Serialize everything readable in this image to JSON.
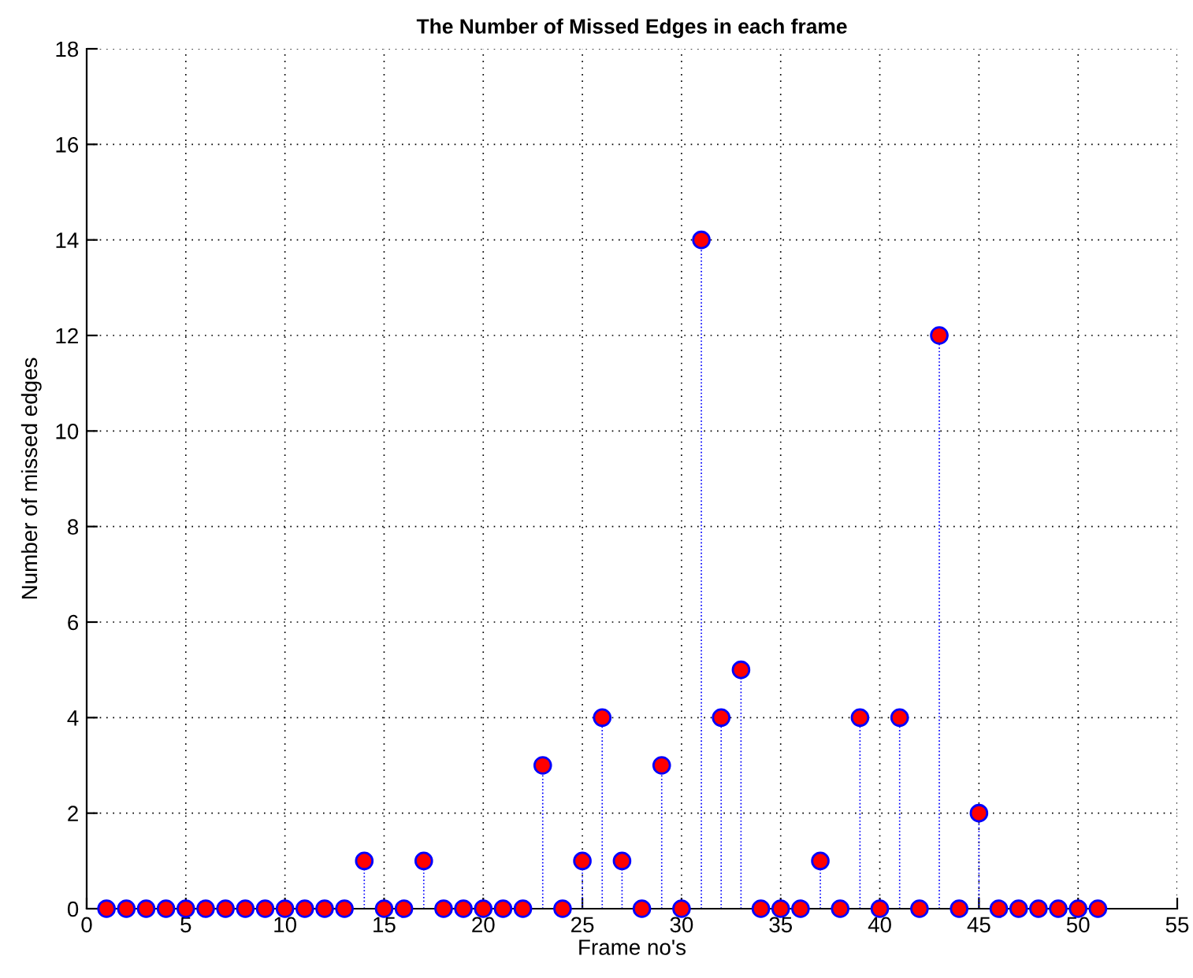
{
  "chart_data": {
    "type": "lollipop",
    "title": "The Number of Missed Edges in each frame",
    "xlabel": "Frame no's",
    "ylabel": "Number of missed edges",
    "x": [
      1,
      2,
      3,
      4,
      5,
      6,
      7,
      8,
      9,
      10,
      11,
      12,
      13,
      14,
      15,
      16,
      17,
      18,
      19,
      20,
      21,
      22,
      23,
      24,
      25,
      26,
      27,
      28,
      29,
      30,
      31,
      32,
      33,
      34,
      35,
      36,
      37,
      38,
      39,
      40,
      41,
      42,
      43,
      44,
      45,
      46,
      47,
      48,
      49,
      50,
      51
    ],
    "series": [
      {
        "color": "#ff0000",
        "values": [
          0,
          0,
          0,
          0,
          0,
          0,
          0,
          0,
          0,
          0,
          0,
          0,
          0,
          1,
          0,
          0,
          1,
          0,
          0,
          0,
          0,
          0,
          3,
          0,
          1,
          4,
          1,
          0,
          3,
          0,
          14,
          4,
          5,
          0,
          0,
          0,
          1,
          0,
          4,
          0,
          4,
          0,
          12,
          0,
          2,
          0,
          0,
          0,
          0,
          0,
          0
        ]
      }
    ],
    "marker": "circle",
    "line_style": "dotted",
    "grid": true,
    "xlim": [
      0,
      55
    ],
    "ylim": [
      0,
      18
    ],
    "xticks": [
      0,
      5,
      10,
      15,
      20,
      25,
      30,
      35,
      40,
      45,
      50,
      55
    ],
    "yticks": [
      0,
      2,
      4,
      6,
      8,
      10,
      12,
      14,
      16,
      18
    ]
  }
}
